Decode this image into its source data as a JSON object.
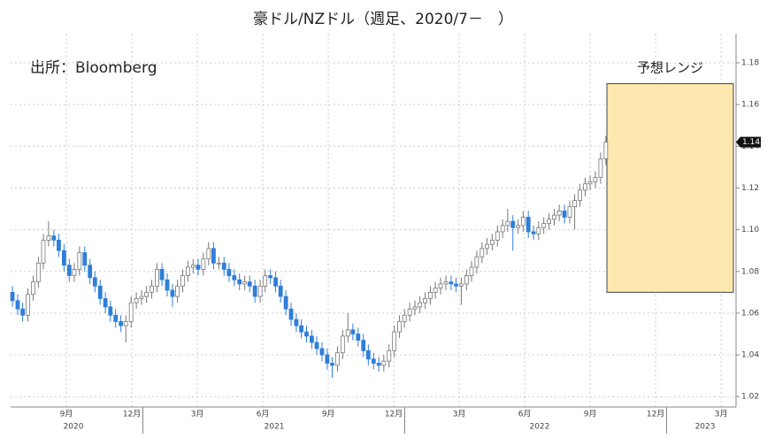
{
  "chart_data": {
    "type": "candlestick",
    "title": "豪ドル/NZドル（週足、2020/7－　）",
    "source": "出所：Bloomberg",
    "up_color": "#ffffff",
    "down_color": "#2f7ed8",
    "forecast_range": {
      "label": "予想レンジ",
      "low": 1.07,
      "high": 1.17,
      "x_start": 2022.772,
      "color": "#fde8b0"
    },
    "last_value_label": "1.14",
    "grid": true,
    "ylim": [
      1.015,
      1.194
    ],
    "yticks": [
      1.02,
      1.04,
      1.06,
      1.08,
      {
        "value": 1.1,
        "label": "1.10"
      },
      1.12,
      1.14,
      1.16,
      1.18
    ],
    "xlim": [
      2020.495,
      2023.255
    ],
    "xticks": [
      {
        "value": 2020.708,
        "label": "9月"
      },
      {
        "value": 2020.958,
        "label": "12月"
      },
      {
        "value": 2021.208,
        "label": "3月"
      },
      {
        "value": 2021.458,
        "label": "6月"
      },
      {
        "value": 2021.708,
        "label": "9月"
      },
      {
        "value": 2021.958,
        "label": "12月"
      },
      {
        "value": 2022.208,
        "label": "3月"
      },
      {
        "value": 2022.458,
        "label": "6月"
      },
      {
        "value": 2022.708,
        "label": "9月"
      },
      {
        "value": 2022.958,
        "label": "12月"
      },
      {
        "value": 2023.208,
        "label": "3月"
      }
    ],
    "year_labels": [
      {
        "value": 2020.735,
        "label": "2020"
      },
      {
        "value": 2021.502,
        "label": "2021"
      },
      {
        "value": 2022.515,
        "label": "2022"
      },
      {
        "value": 2023.147,
        "label": "2023"
      }
    ],
    "year_bounds": [
      2021,
      2022,
      2023
    ],
    "x": [
      2020.502,
      2020.522,
      2020.541,
      2020.561,
      2020.581,
      2020.601,
      2020.62,
      2020.64,
      2020.66,
      2020.679,
      2020.699,
      2020.719,
      2020.738,
      2020.758,
      2020.778,
      2020.798,
      2020.817,
      2020.837,
      2020.857,
      2020.876,
      2020.896,
      2020.916,
      2020.935,
      2020.955,
      2020.975,
      2020.995,
      2021.014,
      2021.034,
      2021.054,
      2021.073,
      2021.093,
      2021.113,
      2021.132,
      2021.152,
      2021.172,
      2021.192,
      2021.211,
      2021.231,
      2021.251,
      2021.27,
      2021.29,
      2021.31,
      2021.329,
      2021.349,
      2021.369,
      2021.389,
      2021.408,
      2021.428,
      2021.448,
      2021.467,
      2021.487,
      2021.507,
      2021.526,
      2021.546,
      2021.566,
      2021.586,
      2021.605,
      2021.625,
      2021.645,
      2021.664,
      2021.684,
      2021.704,
      2021.723,
      2021.743,
      2021.763,
      2021.783,
      2021.802,
      2021.822,
      2021.842,
      2021.861,
      2021.881,
      2021.901,
      2021.92,
      2021.94,
      2021.96,
      2021.98,
      2021.999,
      2022.019,
      2022.039,
      2022.058,
      2022.078,
      2022.098,
      2022.117,
      2022.137,
      2022.157,
      2022.177,
      2022.196,
      2022.216,
      2022.236,
      2022.255,
      2022.275,
      2022.295,
      2022.314,
      2022.334,
      2022.354,
      2022.374,
      2022.393,
      2022.413,
      2022.433,
      2022.452,
      2022.472,
      2022.492,
      2022.511,
      2022.531,
      2022.551,
      2022.571,
      2022.59,
      2022.61,
      2022.63,
      2022.649,
      2022.669,
      2022.689,
      2022.708,
      2022.728,
      2022.748,
      2022.768
    ],
    "open": [
      1.07,
      1.066,
      1.062,
      1.059,
      1.069,
      1.075,
      1.084,
      1.095,
      1.097,
      1.095,
      1.09,
      1.083,
      1.078,
      1.081,
      1.089,
      1.083,
      1.077,
      1.073,
      1.067,
      1.063,
      1.059,
      1.056,
      1.054,
      1.056,
      1.065,
      1.067,
      1.068,
      1.07,
      1.073,
      1.081,
      1.076,
      1.071,
      1.068,
      1.073,
      1.078,
      1.082,
      1.083,
      1.081,
      1.086,
      1.091,
      1.084,
      1.084,
      1.081,
      1.078,
      1.076,
      1.074,
      1.075,
      1.073,
      1.068,
      1.073,
      1.078,
      1.077,
      1.073,
      1.068,
      1.062,
      1.057,
      1.054,
      1.051,
      1.049,
      1.046,
      1.043,
      1.04,
      1.036,
      1.035,
      1.041,
      1.049,
      1.052,
      1.05,
      1.047,
      1.042,
      1.038,
      1.036,
      1.035,
      1.037,
      1.042,
      1.051,
      1.056,
      1.059,
      1.062,
      1.063,
      1.065,
      1.067,
      1.07,
      1.072,
      1.074,
      1.075,
      1.074,
      1.073,
      1.074,
      1.078,
      1.082,
      1.087,
      1.091,
      1.093,
      1.095,
      1.099,
      1.102,
      1.104,
      1.101,
      1.102,
      1.106,
      1.099,
      1.098,
      1.101,
      1.103,
      1.105,
      1.107,
      1.109,
      1.106,
      1.111,
      1.114,
      1.119,
      1.122,
      1.123,
      1.125,
      1.134
    ],
    "high": [
      1.073,
      1.069,
      1.065,
      1.072,
      1.078,
      1.087,
      1.098,
      1.104,
      1.1,
      1.098,
      1.093,
      1.086,
      1.084,
      1.092,
      1.092,
      1.086,
      1.08,
      1.076,
      1.07,
      1.066,
      1.062,
      1.059,
      1.059,
      1.068,
      1.07,
      1.071,
      1.073,
      1.076,
      1.084,
      1.084,
      1.079,
      1.074,
      1.076,
      1.081,
      1.085,
      1.086,
      1.086,
      1.089,
      1.094,
      1.094,
      1.087,
      1.087,
      1.084,
      1.081,
      1.079,
      1.078,
      1.078,
      1.076,
      1.076,
      1.081,
      1.081,
      1.08,
      1.076,
      1.071,
      1.065,
      1.06,
      1.057,
      1.054,
      1.052,
      1.049,
      1.046,
      1.043,
      1.039,
      1.044,
      1.052,
      1.06,
      1.055,
      1.053,
      1.05,
      1.045,
      1.041,
      1.039,
      1.04,
      1.045,
      1.054,
      1.059,
      1.062,
      1.065,
      1.066,
      1.068,
      1.07,
      1.073,
      1.075,
      1.077,
      1.078,
      1.078,
      1.077,
      1.077,
      1.081,
      1.085,
      1.09,
      1.094,
      1.096,
      1.098,
      1.102,
      1.105,
      1.11,
      1.107,
      1.105,
      1.109,
      1.109,
      1.102,
      1.104,
      1.106,
      1.108,
      1.11,
      1.112,
      1.112,
      1.114,
      1.117,
      1.122,
      1.125,
      1.126,
      1.128,
      1.137,
      1.145
    ],
    "low": [
      1.063,
      1.059,
      1.056,
      1.056,
      1.066,
      1.072,
      1.081,
      1.092,
      1.092,
      1.087,
      1.08,
      1.075,
      1.075,
      1.078,
      1.08,
      1.074,
      1.07,
      1.064,
      1.06,
      1.056,
      1.053,
      1.051,
      1.046,
      1.053,
      1.062,
      1.064,
      1.065,
      1.067,
      1.07,
      1.073,
      1.068,
      1.063,
      1.065,
      1.07,
      1.075,
      1.079,
      1.078,
      1.078,
      1.083,
      1.081,
      1.081,
      1.078,
      1.075,
      1.073,
      1.071,
      1.071,
      1.07,
      1.065,
      1.065,
      1.07,
      1.074,
      1.07,
      1.065,
      1.059,
      1.054,
      1.051,
      1.048,
      1.046,
      1.043,
      1.04,
      1.037,
      1.033,
      1.029,
      1.032,
      1.038,
      1.046,
      1.047,
      1.044,
      1.039,
      1.035,
      1.033,
      1.032,
      1.032,
      1.034,
      1.039,
      1.048,
      1.053,
      1.056,
      1.059,
      1.06,
      1.062,
      1.064,
      1.067,
      1.069,
      1.071,
      1.071,
      1.07,
      1.064,
      1.071,
      1.075,
      1.079,
      1.084,
      1.088,
      1.09,
      1.092,
      1.096,
      1.099,
      1.09,
      1.098,
      1.099,
      1.096,
      1.095,
      1.095,
      1.098,
      1.1,
      1.102,
      1.104,
      1.103,
      1.103,
      1.1,
      1.111,
      1.116,
      1.119,
      1.12,
      1.122,
      1.131
    ],
    "close": [
      1.066,
      1.062,
      1.059,
      1.069,
      1.075,
      1.084,
      1.095,
      1.097,
      1.095,
      1.09,
      1.083,
      1.078,
      1.081,
      1.089,
      1.083,
      1.077,
      1.073,
      1.067,
      1.063,
      1.059,
      1.056,
      1.054,
      1.056,
      1.065,
      1.067,
      1.068,
      1.07,
      1.073,
      1.081,
      1.076,
      1.071,
      1.068,
      1.073,
      1.078,
      1.082,
      1.083,
      1.081,
      1.086,
      1.091,
      1.084,
      1.084,
      1.081,
      1.078,
      1.076,
      1.074,
      1.075,
      1.073,
      1.068,
      1.073,
      1.078,
      1.077,
      1.073,
      1.068,
      1.062,
      1.057,
      1.054,
      1.051,
      1.049,
      1.046,
      1.043,
      1.04,
      1.036,
      1.035,
      1.041,
      1.049,
      1.052,
      1.05,
      1.047,
      1.042,
      1.038,
      1.036,
      1.035,
      1.037,
      1.042,
      1.051,
      1.056,
      1.059,
      1.062,
      1.063,
      1.065,
      1.067,
      1.07,
      1.072,
      1.074,
      1.075,
      1.074,
      1.073,
      1.074,
      1.078,
      1.082,
      1.087,
      1.091,
      1.093,
      1.095,
      1.099,
      1.102,
      1.104,
      1.101,
      1.102,
      1.106,
      1.099,
      1.098,
      1.101,
      1.103,
      1.105,
      1.107,
      1.109,
      1.106,
      1.111,
      1.114,
      1.119,
      1.122,
      1.123,
      1.125,
      1.134,
      1.142
    ]
  }
}
